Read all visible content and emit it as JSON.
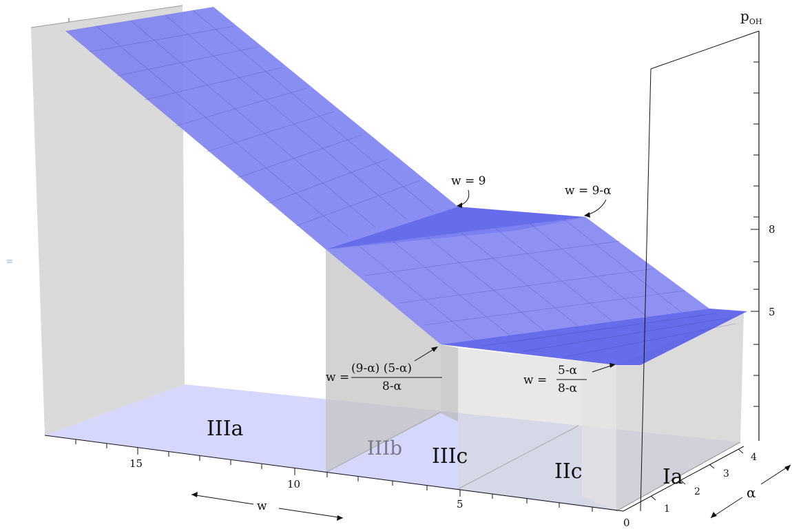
{
  "axes": {
    "z_label": "p",
    "z_label_sub": "OH",
    "z_ticks": [
      "8",
      "5"
    ],
    "w_ticks": [
      "15",
      "10",
      "5",
      "0"
    ],
    "w_label": "w",
    "alpha_ticks": [
      "1",
      "2",
      "3",
      "4"
    ],
    "alpha_label": "α"
  },
  "regions": [
    "IIIa",
    "IIIb",
    "IIIc",
    "IIc",
    "Ia"
  ],
  "annotations": {
    "w9": "w = 9",
    "w9a": "w = 9-α",
    "frac_prefix": "w =",
    "left_num": "(9-α) (5-α)",
    "left_den": "8-α",
    "right_num": "5-α",
    "right_den": "8-α"
  },
  "colors": {
    "surface": "#7b7ff0",
    "surface_dark": "#5c60e6",
    "wall": "#c8c8c8",
    "floor": "#d2d4fb"
  }
}
